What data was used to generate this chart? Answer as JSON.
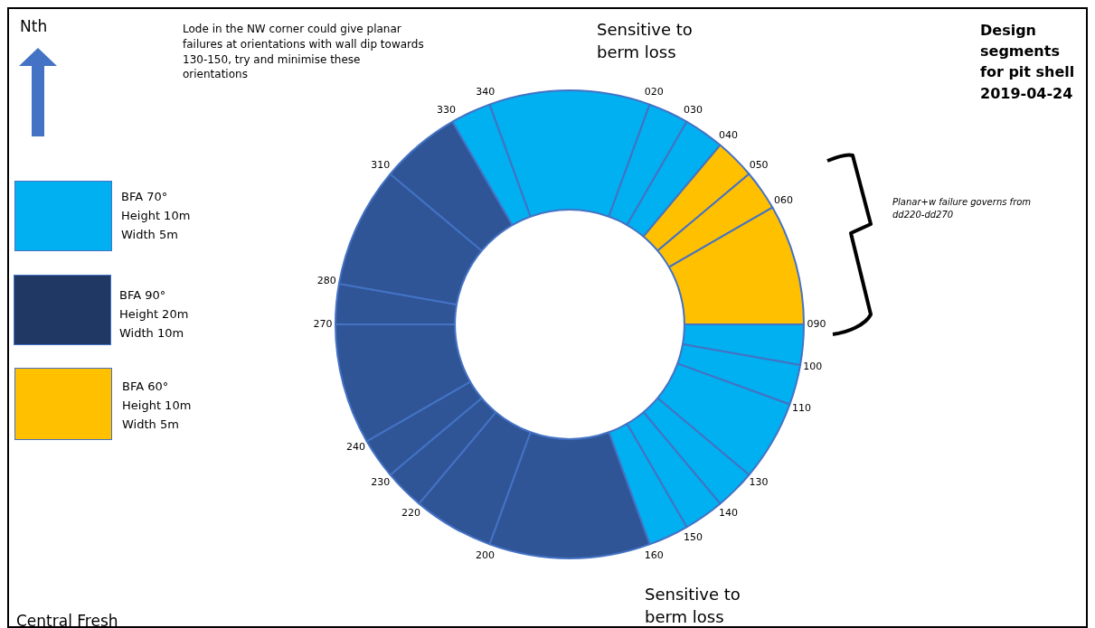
{
  "chart_data": {
    "type": "donut",
    "categories": [
      null,
      null,
      null,
      null,
      null,
      null,
      null,
      null,
      null,
      null,
      null,
      null,
      null,
      null,
      null,
      null,
      null,
      null,
      null,
      null,
      null
    ],
    "values": [
      11.11,
      2.78,
      2.78,
      2.78,
      2.78,
      8.33,
      2.78,
      2.78,
      5.56,
      2.78,
      2.78,
      2.78,
      11.11,
      5.56,
      2.78,
      2.78,
      8.33,
      2.78,
      8.33,
      5.56,
      2.78
    ],
    "colors": [
      "#00b0f0",
      "#00b0f0",
      "#00b0f0",
      "#ffc000",
      "#ffc000",
      "#ffc000",
      "#00b0f0",
      "#00b0f0",
      "#00b0f0",
      "#00b0f0",
      "#00b0f0",
      "#00b0f0",
      "#2f5597",
      "#2f5597",
      "#2f5597",
      "#2f5597",
      "#2f5597",
      "#2f5597",
      "#2f5597",
      "#2f5597",
      "#00b0f0"
    ],
    "title": "Design segments for pit shell 2019-04-24",
    "annotations": [
      "Lode in the NW corner could give planar failures at orientations with wall dip towards 130-150, try and minimise these orientations",
      "Sensitive to berm loss",
      "Sensitive to berm loss",
      "Planar+w failure governs from dd220-dd270",
      "Central Fresh",
      "Nth",
      "BFA 70°\nHeight 10m\nWidth 5m",
      "BFA 90°\nHeight 20m\nWidth 10m",
      "BFA 60°\nHeight 10m\nWidth 5m",
      "340",
      "020",
      "030",
      "040",
      "050",
      "060",
      "090",
      "100",
      "110",
      "130",
      "140",
      "150",
      "160",
      "200",
      "220",
      "230",
      "240",
      "270",
      "280",
      "310",
      "330"
    ]
  }
}
